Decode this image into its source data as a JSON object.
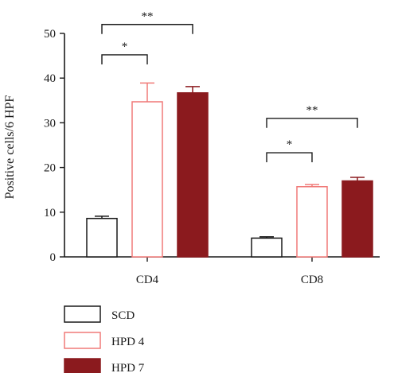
{
  "chart_data": {
    "type": "bar",
    "categories": [
      "CD4",
      "CD8"
    ],
    "series": [
      {
        "name": "SCD",
        "values": [
          8.6,
          4.2
        ],
        "errors": [
          0.5,
          0.3
        ],
        "color": "#ffffff",
        "stroke": "#1a1a1a"
      },
      {
        "name": "HPD 4",
        "values": [
          34.7,
          15.7
        ],
        "errors": [
          4.2,
          0.5
        ],
        "color": "#ffffff",
        "stroke": "#f07a78"
      },
      {
        "name": "HPD 7",
        "values": [
          36.7,
          17.0
        ],
        "errors": [
          1.4,
          0.8
        ],
        "color": "#8b1a1e",
        "stroke": "#8b1a1e"
      }
    ],
    "ylabel": "Positive cells/6 HPF",
    "ylim": [
      0,
      50
    ],
    "yticks": [
      0,
      10,
      20,
      30,
      40,
      50
    ],
    "significance": [
      {
        "category": "CD4",
        "from": "SCD",
        "to": "HPD 4",
        "label": "*",
        "level": 45.2
      },
      {
        "category": "CD4",
        "from": "SCD",
        "to": "HPD 7",
        "label": "**",
        "level": 52.0
      },
      {
        "category": "CD8",
        "from": "SCD",
        "to": "HPD 4",
        "label": "*",
        "level": 23.3
      },
      {
        "category": "CD8",
        "from": "SCD",
        "to": "HPD 7",
        "label": "**",
        "level": 31.0
      }
    ],
    "legend_position": "bottom-left",
    "grid": false
  }
}
